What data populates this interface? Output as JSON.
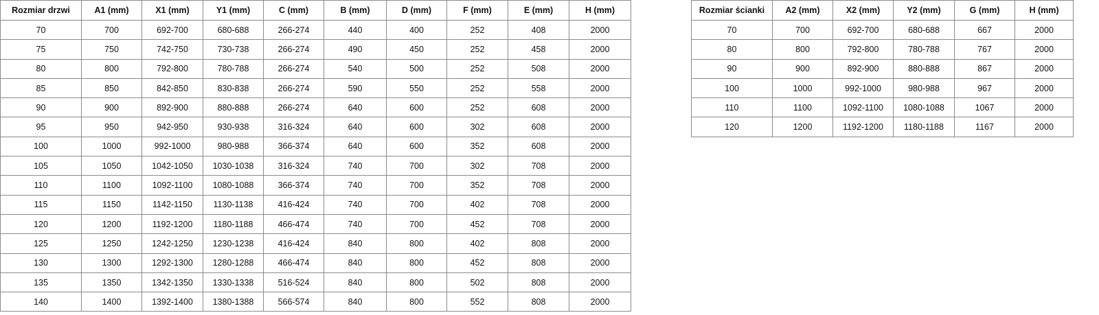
{
  "doors_table": {
    "headers": [
      "Rozmiar drzwi",
      "A1 (mm)",
      "X1 (mm)",
      "Y1 (mm)",
      "C (mm)",
      "B (mm)",
      "D (mm)",
      "F (mm)",
      "E (mm)",
      "H (mm)"
    ],
    "rows": [
      [
        "70",
        "700",
        "692-700",
        "680-688",
        "266-274",
        "440",
        "400",
        "252",
        "408",
        "2000"
      ],
      [
        "75",
        "750",
        "742-750",
        "730-738",
        "266-274",
        "490",
        "450",
        "252",
        "458",
        "2000"
      ],
      [
        "80",
        "800",
        "792-800",
        "780-788",
        "266-274",
        "540",
        "500",
        "252",
        "508",
        "2000"
      ],
      [
        "85",
        "850",
        "842-850",
        "830-838",
        "266-274",
        "590",
        "550",
        "252",
        "558",
        "2000"
      ],
      [
        "90",
        "900",
        "892-900",
        "880-888",
        "266-274",
        "640",
        "600",
        "252",
        "608",
        "2000"
      ],
      [
        "95",
        "950",
        "942-950",
        "930-938",
        "316-324",
        "640",
        "600",
        "302",
        "608",
        "2000"
      ],
      [
        "100",
        "1000",
        "992-1000",
        "980-988",
        "366-374",
        "640",
        "600",
        "352",
        "608",
        "2000"
      ],
      [
        "105",
        "1050",
        "1042-1050",
        "1030-1038",
        "316-324",
        "740",
        "700",
        "302",
        "708",
        "2000"
      ],
      [
        "110",
        "1100",
        "1092-1100",
        "1080-1088",
        "366-374",
        "740",
        "700",
        "352",
        "708",
        "2000"
      ],
      [
        "115",
        "1150",
        "1142-1150",
        "1130-1138",
        "416-424",
        "740",
        "700",
        "402",
        "708",
        "2000"
      ],
      [
        "120",
        "1200",
        "1192-1200",
        "1180-1188",
        "466-474",
        "740",
        "700",
        "452",
        "708",
        "2000"
      ],
      [
        "125",
        "1250",
        "1242-1250",
        "1230-1238",
        "416-424",
        "840",
        "800",
        "402",
        "808",
        "2000"
      ],
      [
        "130",
        "1300",
        "1292-1300",
        "1280-1288",
        "466-474",
        "840",
        "800",
        "452",
        "808",
        "2000"
      ],
      [
        "135",
        "1350",
        "1342-1350",
        "1330-1338",
        "516-524",
        "840",
        "800",
        "502",
        "808",
        "2000"
      ],
      [
        "140",
        "1400",
        "1392-1400",
        "1380-1388",
        "566-574",
        "840",
        "800",
        "552",
        "808",
        "2000"
      ]
    ]
  },
  "walls_table": {
    "headers": [
      "Rozmiar ścianki",
      "A2 (mm)",
      "X2 (mm)",
      "Y2 (mm)",
      "G (mm)",
      "H (mm)"
    ],
    "rows": [
      [
        "70",
        "700",
        "692-700",
        "680-688",
        "667",
        "2000"
      ],
      [
        "80",
        "800",
        "792-800",
        "780-788",
        "767",
        "2000"
      ],
      [
        "90",
        "900",
        "892-900",
        "880-888",
        "867",
        "2000"
      ],
      [
        "100",
        "1000",
        "992-1000",
        "980-988",
        "967",
        "2000"
      ],
      [
        "110",
        "1100",
        "1092-1100",
        "1080-1088",
        "1067",
        "2000"
      ],
      [
        "120",
        "1200",
        "1192-1200",
        "1180-1188",
        "1167",
        "2000"
      ]
    ]
  }
}
